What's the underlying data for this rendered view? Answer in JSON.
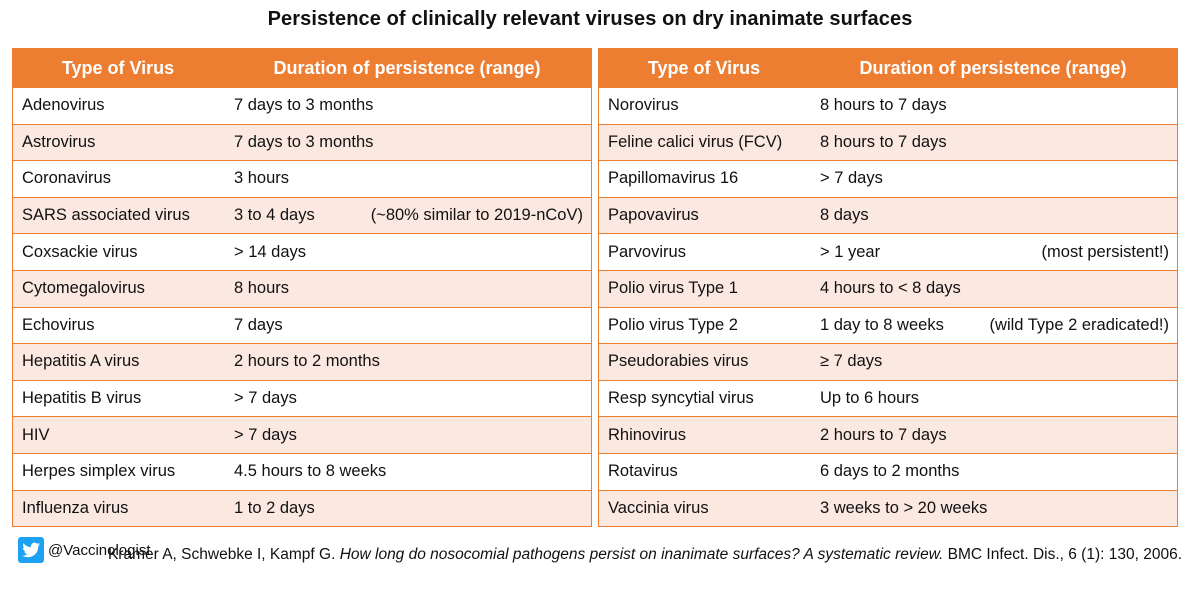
{
  "title": "Persistence of clinically relevant viruses on dry inanimate surfaces",
  "colors": {
    "accent": "#ED7D31",
    "stripe": "#FBE9E1",
    "twitter": "#1DA1F2"
  },
  "left_table": {
    "header": [
      "Type of Virus",
      "Duration of persistence (range)"
    ],
    "rows": [
      {
        "virus": "Adenovirus",
        "duration": "7 days to 3 months",
        "note": ""
      },
      {
        "virus": "Astrovirus",
        "duration": "7 days to 3 months",
        "note": ""
      },
      {
        "virus": "Coronavirus",
        "duration": "3 hours",
        "note": ""
      },
      {
        "virus": "SARS associated virus",
        "duration": "3 to 4 days",
        "note": "(~80% similar to 2019-nCoV)"
      },
      {
        "virus": "Coxsackie virus",
        "duration": "> 14 days",
        "note": ""
      },
      {
        "virus": "Cytomegalovirus",
        "duration": "8 hours",
        "note": ""
      },
      {
        "virus": "Echovirus",
        "duration": "7 days",
        "note": ""
      },
      {
        "virus": "Hepatitis A virus",
        "duration": "2 hours to 2 months",
        "note": ""
      },
      {
        "virus": "Hepatitis B virus",
        "duration": "> 7 days",
        "note": ""
      },
      {
        "virus": "HIV",
        "duration": "> 7 days",
        "note": ""
      },
      {
        "virus": "Herpes simplex virus",
        "duration": "4.5 hours to 8 weeks",
        "note": ""
      },
      {
        "virus": "Influenza virus",
        "duration": "1 to 2 days",
        "note": ""
      }
    ]
  },
  "right_table": {
    "header": [
      "Type of Virus",
      "Duration of persistence (range)"
    ],
    "rows": [
      {
        "virus": "Norovirus",
        "duration": "8 hours to 7 days",
        "note": ""
      },
      {
        "virus": "Feline calici virus (FCV)",
        "duration": "8 hours to 7 days",
        "note": ""
      },
      {
        "virus": "Papillomavirus 16",
        "duration": "> 7 days",
        "note": ""
      },
      {
        "virus": "Papovavirus",
        "duration": "8 days",
        "note": ""
      },
      {
        "virus": "Parvovirus",
        "duration": "> 1 year",
        "note": "(most persistent!)"
      },
      {
        "virus": "Polio virus Type 1",
        "duration": "4 hours to < 8 days",
        "note": ""
      },
      {
        "virus": "Polio virus Type 2",
        "duration": "1 day to 8 weeks",
        "note": "(wild Type 2 eradicated!)"
      },
      {
        "virus": "Pseudorabies virus",
        "duration": "≥ 7 days",
        "note": ""
      },
      {
        "virus": "Resp syncytial virus",
        "duration": "Up to 6 hours",
        "note": ""
      },
      {
        "virus": "Rhinovirus",
        "duration": "2 hours to 7 days",
        "note": ""
      },
      {
        "virus": "Rotavirus",
        "duration": "6 days to 2 months",
        "note": ""
      },
      {
        "virus": "Vaccinia virus",
        "duration": "3 weeks to > 20 weeks",
        "note": ""
      }
    ]
  },
  "footer": {
    "twitter_icon": "twitter-icon",
    "handle": "@Vaccinologist",
    "citation_authors": "Kramer A, Schwebke I, Kampf G.",
    "citation_title": "How long do nosocomial pathogens persist on inanimate surfaces? A systematic review.",
    "citation_journal": "BMC Infect. Dis., 6 (1): 130, 2006."
  }
}
